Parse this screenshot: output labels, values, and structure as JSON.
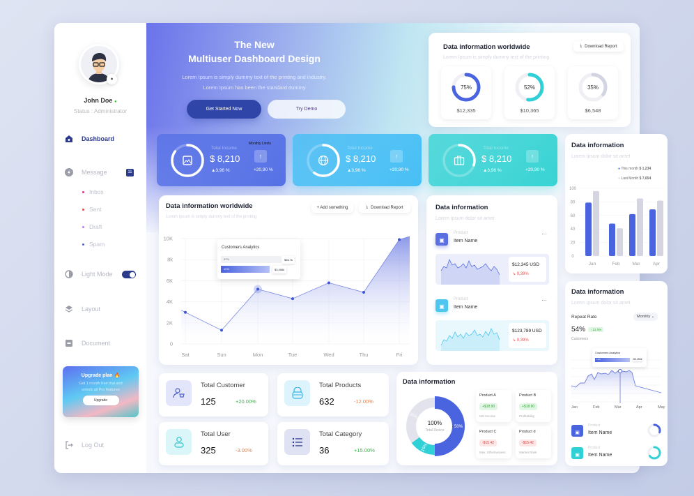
{
  "sidebar": {
    "user_name": "John Doe",
    "status": "Status : Administrator",
    "items": {
      "dashboard": "Dashboard",
      "message": "Message",
      "message_badge": "11",
      "inbox": "Inbox",
      "sent": "Sent",
      "draft": "Draft",
      "spam": "Spam",
      "light_mode": "Light Mode",
      "layout": "Layout",
      "document": "Document",
      "logout": "Log Out"
    },
    "light_mode_on": true,
    "upgrade": {
      "title": "Upgrade plan 🔥",
      "text1": "Get 1 month free trial and",
      "text2": "unlock all Pro features",
      "button": "Upgrade"
    }
  },
  "hero": {
    "title1": "The New",
    "title2": "Multiuser Dashboard Design",
    "text1": "Lorem Ipsum is simply dummy text of the printing and industry.",
    "text2": "Lorem Ipsum has been the standard dummy",
    "primary": "Get Started Now",
    "secondary": "Try Demo"
  },
  "worldwide_top": {
    "title": "Data information worldwide",
    "subtitle": "Lorem Ipsum is simply dummy text of the printing",
    "download": "Download Report",
    "rings": [
      {
        "pct": 75,
        "label": "75%",
        "amount": "$12,335",
        "color": "#4a63df"
      },
      {
        "pct": 52,
        "label": "52%",
        "amount": "$10,365",
        "color": "#2fd0d6"
      },
      {
        "pct": 35,
        "label": "35%",
        "amount": "$6,548",
        "color": "#d3d4e2"
      }
    ]
  },
  "stat_cards": [
    {
      "label": "Total Income",
      "value": "$ 8,210",
      "change": "▲3,96 %",
      "side": "+20,90 %",
      "extra": "Monthly Limits",
      "icon": "image-icon",
      "progress": 0.85,
      "color": "#5671e6"
    },
    {
      "label": "Total Income",
      "value": "$ 8,210",
      "change": "▲3,96 %",
      "side": "+20,90 %",
      "icon": "globe-icon",
      "progress": 0.6,
      "color": "#47bff5"
    },
    {
      "label": "Total Income",
      "value": "$ 8,210",
      "change": "▲3,96 %",
      "side": "+20,90 %",
      "icon": "briefcase-icon",
      "progress": 0.3,
      "color": "#37d3d4"
    }
  ],
  "main_chart": {
    "title": "Data information worldwide",
    "subtitle": "Lorem Ipsum is simply dummy text of the printing",
    "add": "+ Add something",
    "download": "Download Report",
    "tooltip": {
      "title": "Customers Analytics",
      "row1_pct": "52%",
      "row1_val": "$56.7k",
      "row2_pct": "11%",
      "row2_val": "$3,456k"
    }
  },
  "chart_data": [
    {
      "type": "area",
      "categories": [
        "Sat",
        "Sun",
        "Mon",
        "Tue",
        "Wed",
        "Thu",
        "Fri"
      ],
      "values": [
        3000,
        1300,
        5200,
        4300,
        5800,
        4900,
        9900
      ],
      "ylim": [
        0,
        10000
      ],
      "yticks": [
        "0",
        "2K",
        "4K",
        "6K",
        "8k",
        "10K"
      ],
      "grid": true
    },
    {
      "type": "bar",
      "categories": [
        "Jan",
        "Feb",
        "Mar",
        "Apr"
      ],
      "ylim": [
        0,
        100
      ],
      "yticks": [
        "0",
        "20",
        "40",
        "60",
        "80",
        "100"
      ],
      "grid": true,
      "series": [
        {
          "name": "This month",
          "values": [
            79,
            48,
            62,
            69
          ],
          "color": "#4a63df"
        },
        {
          "name": "Last Month",
          "values": [
            96,
            41,
            85,
            82
          ],
          "color": "#d4d5e1"
        }
      ],
      "legend": "top-right"
    }
  ],
  "products_card": {
    "title": "Data information",
    "subtitle": "Lorem ipsum dolor sit amet",
    "items": [
      {
        "kind": "Product",
        "name": "Item Name",
        "amount": "$12,345 USD",
        "change": "↘ 0,39%",
        "color": "#5a6fe0"
      },
      {
        "kind": "Product",
        "name": "Item Name",
        "amount": "$123,789 USD",
        "change": "↘ 0,39%",
        "color": "#4ec6ef"
      }
    ]
  },
  "bar_card": {
    "title": "Data information",
    "subtitle": "Lorem ipsum dolor sit amet",
    "legend": [
      {
        "label": "This month",
        "value": "$ 1,234"
      },
      {
        "label": "Last Month",
        "value": "$ 7,654"
      }
    ]
  },
  "repeat_card": {
    "title": "Data information",
    "subtitle": "Lorem ipsum dolor sit amet",
    "label": "Repeat Rate",
    "period": "Monthly",
    "value": "54%",
    "badge": "↑ 12.5%",
    "caption": "Customers",
    "tooltip_title": "Customers Analytics",
    "tooltip_pct": "11%",
    "tooltip_val": "$3,456k",
    "months": [
      "Jan",
      "Feb",
      "Mar",
      "Apr",
      "May"
    ],
    "items": [
      {
        "kind": "Product",
        "name": "Item Name",
        "progress": 0.3,
        "color": "#4a63df"
      },
      {
        "kind": "Product",
        "name": "Item Name",
        "progress": 0.65,
        "color": "#2fd0d6"
      }
    ]
  },
  "mini_stats": [
    {
      "label": "Total Customer",
      "value": "125",
      "change": "+20.00%",
      "positive": true
    },
    {
      "label": "Total Products",
      "value": "632",
      "change": "-12.00%",
      "positive": false
    },
    {
      "label": "Total User",
      "value": "325",
      "change": "-3.00%",
      "positive": false
    },
    {
      "label": "Total Category",
      "value": "36",
      "change": "+15.00%",
      "positive": true
    }
  ],
  "donut_card": {
    "title": "Data information",
    "center": "100%",
    "center_label": "Total Device",
    "slices": [
      {
        "label": "50%",
        "value": 50,
        "color": "#4a63df"
      },
      {
        "label": "15%",
        "value": 15,
        "color": "#2fd0d6"
      },
      {
        "label": "35%",
        "value": 35,
        "color": "#e2e3ec"
      }
    ],
    "products": [
      {
        "name": "Product A",
        "value": "+$18.90",
        "caption": "Net Income",
        "positive": true
      },
      {
        "name": "Product B",
        "value": "+$18.90",
        "caption": "Profitability",
        "positive": true
      },
      {
        "name": "Product C",
        "value": "-$15.42",
        "caption": "Max. Effectiveness",
        "positive": false
      },
      {
        "name": "Product d",
        "value": "-$15.42",
        "caption": "Market Rank",
        "positive": false
      }
    ]
  }
}
